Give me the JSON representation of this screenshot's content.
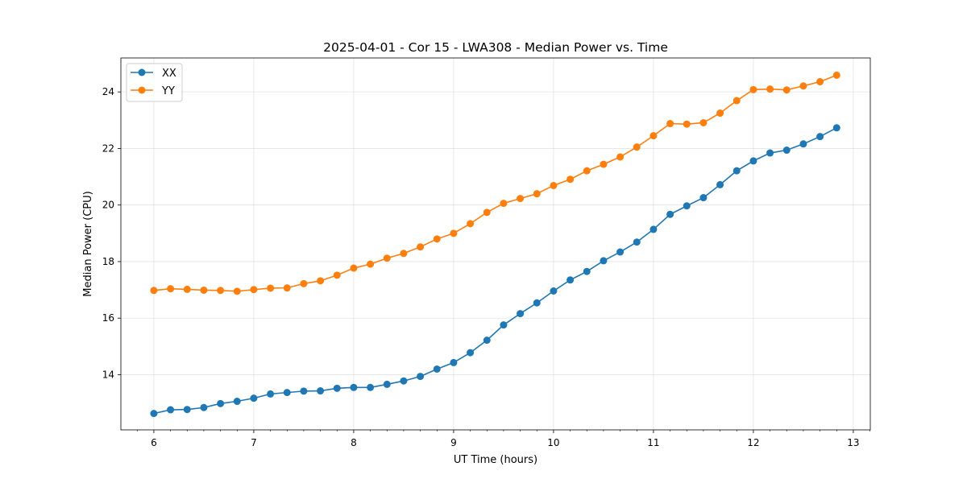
{
  "chart_data": {
    "type": "line",
    "title": "2025-04-01 - Cor 15 - LWA308 - Median Power vs. Time",
    "xlabel": "UT Time (hours)",
    "ylabel": "Median Power (CPU)",
    "xlim": [
      5.67,
      13.17
    ],
    "ylim": [
      12.05,
      25.2
    ],
    "xticks": [
      6,
      7,
      8,
      9,
      10,
      11,
      12,
      13
    ],
    "yticks": [
      14,
      16,
      18,
      20,
      22,
      24
    ],
    "grid": true,
    "legend_position": "top-left",
    "x": [
      6.0,
      6.1667,
      6.3333,
      6.5,
      6.6667,
      6.8333,
      7.0,
      7.1667,
      7.3333,
      7.5,
      7.6667,
      7.8333,
      8.0,
      8.1667,
      8.3333,
      8.5,
      8.6667,
      8.8333,
      9.0,
      9.1667,
      9.3333,
      9.5,
      9.6667,
      9.8333,
      10.0,
      10.1667,
      10.3333,
      10.5,
      10.6667,
      10.8333,
      11.0,
      11.1667,
      11.3333,
      11.5,
      11.6667,
      11.8333,
      12.0,
      12.1667,
      12.3333,
      12.5,
      12.6667,
      12.8333
    ],
    "series": [
      {
        "name": "XX",
        "color": "#1f77b4",
        "values": [
          12.63,
          12.76,
          12.77,
          12.84,
          12.98,
          13.06,
          13.17,
          13.32,
          13.37,
          13.42,
          13.43,
          13.52,
          13.55,
          13.55,
          13.66,
          13.78,
          13.94,
          14.2,
          14.43,
          14.78,
          15.22,
          15.76,
          16.16,
          16.54,
          16.96,
          17.35,
          17.65,
          18.03,
          18.34,
          18.69,
          19.14,
          19.67,
          19.97,
          20.26,
          20.72,
          21.21,
          21.56,
          21.84,
          21.94,
          22.16,
          22.42,
          22.73
        ]
      },
      {
        "name": "YY",
        "color": "#ff7f0e",
        "values": [
          16.98,
          17.04,
          17.02,
          16.99,
          16.98,
          16.95,
          17.01,
          17.06,
          17.07,
          17.22,
          17.32,
          17.52,
          17.77,
          17.91,
          18.12,
          18.29,
          18.52,
          18.8,
          19.0,
          19.34,
          19.74,
          20.06,
          20.23,
          20.4,
          20.69,
          20.91,
          21.21,
          21.44,
          21.7,
          22.05,
          22.45,
          22.88,
          22.86,
          22.91,
          23.25,
          23.69,
          24.08,
          24.1,
          24.07,
          24.21,
          24.36,
          24.59
        ]
      }
    ]
  }
}
